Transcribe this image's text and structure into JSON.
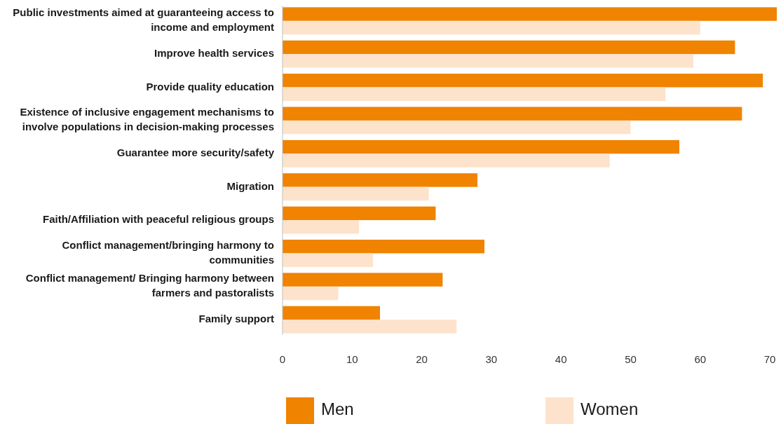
{
  "chart_data": {
    "type": "bar",
    "orientation": "horizontal",
    "categories": [
      "Public investments aimed at guaranteeing access to income and employment",
      "Improve health services",
      "Provide quality education",
      "Existence of inclusive engagement mechanisms to involve populations in decision-making processes",
      "Guarantee more security/safety",
      "Migration",
      "Faith/Affiliation with peaceful religious groups",
      "Conflict management/bringing harmony to communities",
      "Conflict management/ Bringing harmony between farmers and pastoralists",
      "Family support"
    ],
    "series": [
      {
        "name": "Men",
        "color": "#f08300",
        "values": [
          71,
          65,
          69,
          66,
          57,
          28,
          22,
          29,
          23,
          14
        ]
      },
      {
        "name": "Women",
        "color": "#fde3cb",
        "values": [
          60,
          59,
          55,
          50,
          47,
          21,
          11,
          13,
          8,
          25
        ]
      }
    ],
    "xlim": [
      0,
      71
    ],
    "xticks": [
      0,
      10,
      20,
      30,
      40,
      50,
      60,
      70
    ],
    "grid": false,
    "legend": "bottom"
  }
}
